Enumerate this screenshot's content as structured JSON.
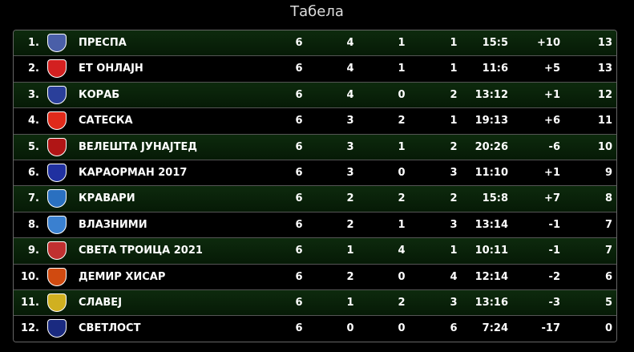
{
  "title": "Табела",
  "table": {
    "rows": [
      [
        "1.",
        "ПРЕСПА",
        "6",
        "4",
        "1",
        "1",
        "15:5",
        "+10",
        "13"
      ],
      [
        "2.",
        "ЕТ ОНЛАЈН",
        "6",
        "4",
        "1",
        "1",
        "11:6",
        "+5",
        "13"
      ],
      [
        "3.",
        "КОРАБ",
        "6",
        "4",
        "0",
        "2",
        "13:12",
        "+1",
        "12"
      ],
      [
        "4.",
        "САТЕСКА",
        "6",
        "3",
        "2",
        "1",
        "19:13",
        "+6",
        "11"
      ],
      [
        "5.",
        "ВЕЛЕШТА ЈУНАЈТЕД",
        "6",
        "3",
        "1",
        "2",
        "20:26",
        "-6",
        "10"
      ],
      [
        "6.",
        "КАРАОРМАН 2017",
        "6",
        "3",
        "0",
        "3",
        "11:10",
        "+1",
        "9"
      ],
      [
        "7.",
        "КРАВАРИ",
        "6",
        "2",
        "2",
        "2",
        "15:8",
        "+7",
        "8"
      ],
      [
        "8.",
        "ВЛАЗНИМИ",
        "6",
        "2",
        "1",
        "3",
        "13:14",
        "-1",
        "7"
      ],
      [
        "9.",
        "СВЕТА ТРОИЦА 2021",
        "6",
        "1",
        "4",
        "1",
        "10:11",
        "-1",
        "7"
      ],
      [
        "10.",
        "ДЕМИР ХИСАР",
        "6",
        "2",
        "0",
        "4",
        "12:14",
        "-2",
        "6"
      ],
      [
        "11.",
        "СЛАВЕЈ",
        "6",
        "1",
        "2",
        "3",
        "13:16",
        "-3",
        "5"
      ],
      [
        "12.",
        "СВЕТЛОСТ",
        "6",
        "0",
        "0",
        "6",
        "7:24",
        "-17",
        "0"
      ]
    ]
  }
}
